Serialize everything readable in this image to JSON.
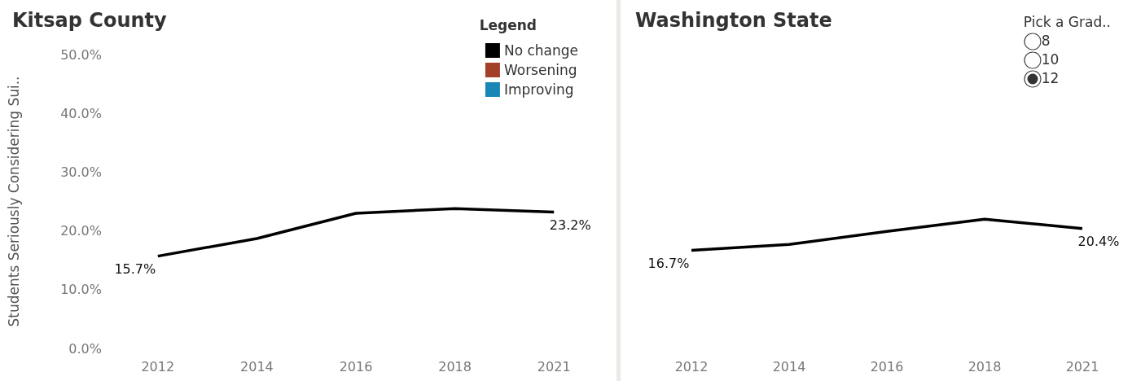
{
  "chart_data": [
    {
      "type": "line",
      "title": "Kitsap County",
      "ylabel": "Students Seriously Considering Sui..",
      "categories": [
        "2012",
        "2014",
        "2016",
        "2018",
        "2021"
      ],
      "ylim": [
        0,
        50
      ],
      "yticks": [
        {
          "value": 0,
          "label": "0.0%"
        },
        {
          "value": 10,
          "label": "10.0%"
        },
        {
          "value": 20,
          "label": "20.0%"
        },
        {
          "value": 30,
          "label": "30.0%"
        },
        {
          "value": 40,
          "label": "40.0%"
        },
        {
          "value": 50,
          "label": "50.0%"
        }
      ],
      "legend": "top right",
      "legend_title": "Legend",
      "series": [
        {
          "name": "No change",
          "color": "#000000",
          "values": [
            15.7,
            18.7,
            23.0,
            23.8,
            23.2
          ],
          "value_labels": [
            "15.7%",
            null,
            null,
            null,
            "23.2%"
          ]
        },
        {
          "name": "Worsening",
          "color": "#a3402a",
          "values": [
            null,
            null,
            null,
            null,
            null
          ]
        },
        {
          "name": "Improving",
          "color": "#1a86b5",
          "values": [
            null,
            null,
            null,
            null,
            null
          ]
        }
      ]
    },
    {
      "type": "line",
      "title": "Washington State",
      "categories": [
        "2012",
        "2014",
        "2016",
        "2018",
        "2021"
      ],
      "ylim": [
        0,
        50
      ],
      "yticks": [
        {
          "value": 0,
          "label": null
        },
        {
          "value": 10,
          "label": null
        },
        {
          "value": 20,
          "label": null
        },
        {
          "value": 30,
          "label": null
        },
        {
          "value": 40,
          "label": null
        },
        {
          "value": 50,
          "label": null
        }
      ],
      "tick_labels": "x",
      "annotations": [
        "Pick a Grad..",
        "8",
        "10",
        "12"
      ],
      "series": [
        {
          "color": "#000000",
          "values": [
            16.7,
            17.7,
            19.9,
            22.0,
            20.4
          ],
          "value_labels": [
            "16.7%",
            null,
            null,
            null,
            "20.4%"
          ]
        }
      ]
    }
  ]
}
